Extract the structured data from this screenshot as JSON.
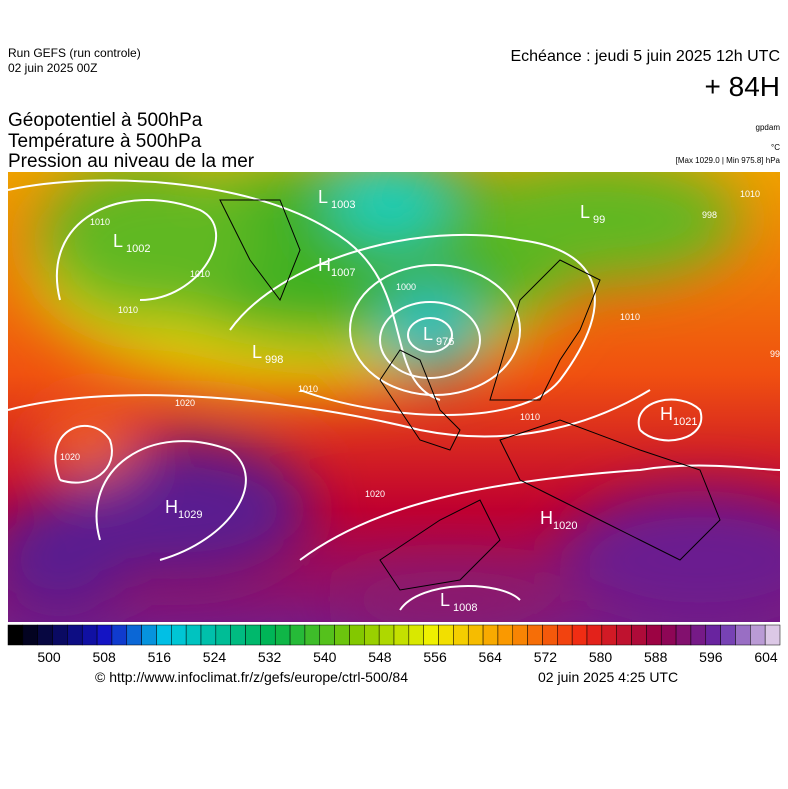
{
  "header": {
    "model": "Run GEFS (run controle)",
    "run": "02 juin 2025 00Z",
    "echeance": "Echéance : jeudi 5 juin 2025 12h UTC",
    "lead": "+ 84H"
  },
  "titles": [
    "Géopotentiel à 500hPa",
    "Température à 500hPa",
    "Pression au niveau de la mer"
  ],
  "units": [
    "gpdam",
    "°C",
    "[Max 1029.0 | Min 975.8] hPa"
  ],
  "centers": [
    {
      "type": "L",
      "value": 1003
    },
    {
      "type": "L",
      "value": 1002
    },
    {
      "type": "H",
      "value": 1007
    },
    {
      "type": "L",
      "value": 976
    },
    {
      "type": "L",
      "value": 998
    },
    {
      "type": "L",
      "value": 99
    },
    {
      "type": "H",
      "value": 1021
    },
    {
      "type": "H",
      "value": 1029
    },
    {
      "type": "H",
      "value": 1020
    },
    {
      "type": "L",
      "value": 1008
    }
  ],
  "isobar_labels": [
    1010,
    1010,
    1010,
    1000,
    1010,
    1020,
    1020,
    1020,
    1010,
    1010,
    1010,
    998,
    99
  ],
  "colorbar": {
    "ticks": [
      500,
      508,
      516,
      524,
      532,
      540,
      548,
      556,
      564,
      572,
      580,
      588,
      596,
      604
    ]
  },
  "footer": {
    "url": "© http://www.infoclimat.fr/z/gefs/europe/ctrl-500/84",
    "date": "02 juin 2025  4:25 UTC"
  }
}
